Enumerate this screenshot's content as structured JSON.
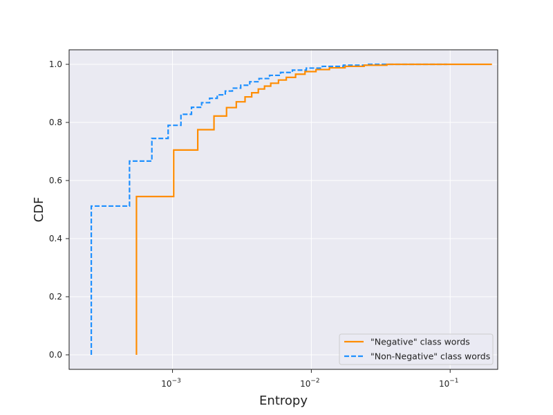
{
  "chart_data": {
    "type": "line",
    "subtype": "step-cdf",
    "title": "",
    "xlabel": "Entropy",
    "ylabel": "CDF",
    "xscale": "log",
    "xlim": [
      0.00018,
      0.22
    ],
    "ylim": [
      -0.05,
      1.05
    ],
    "x_ticks": [
      {
        "value": 0.001,
        "base": "10",
        "exp": "−3"
      },
      {
        "value": 0.01,
        "base": "10",
        "exp": "−2"
      },
      {
        "value": 0.1,
        "base": "10",
        "exp": "−1"
      }
    ],
    "y_ticks": [
      {
        "value": 0.0,
        "label": "0.0"
      },
      {
        "value": 0.2,
        "label": "0.2"
      },
      {
        "value": 0.4,
        "label": "0.4"
      },
      {
        "value": 0.6,
        "label": "0.6"
      },
      {
        "value": 0.8,
        "label": "0.8"
      },
      {
        "value": 1.0,
        "label": "1.0"
      }
    ],
    "grid": true,
    "legend_position": "lower-right",
    "series": [
      {
        "name": "\"Negative\" class words",
        "color": "#ff8c00",
        "linestyle": "solid",
        "points": [
          [
            0.00055,
            0.0
          ],
          [
            0.00055,
            0.545
          ],
          [
            0.00102,
            0.545
          ],
          [
            0.00102,
            0.705
          ],
          [
            0.00152,
            0.705
          ],
          [
            0.00152,
            0.775
          ],
          [
            0.00199,
            0.775
          ],
          [
            0.00199,
            0.822
          ],
          [
            0.00245,
            0.822
          ],
          [
            0.00245,
            0.851
          ],
          [
            0.00288,
            0.851
          ],
          [
            0.00288,
            0.871
          ],
          [
            0.00333,
            0.871
          ],
          [
            0.00333,
            0.888
          ],
          [
            0.00372,
            0.888
          ],
          [
            0.00372,
            0.902
          ],
          [
            0.00415,
            0.902
          ],
          [
            0.00415,
            0.915
          ],
          [
            0.0046,
            0.915
          ],
          [
            0.0046,
            0.925
          ],
          [
            0.0051,
            0.925
          ],
          [
            0.0051,
            0.935
          ],
          [
            0.0058,
            0.935
          ],
          [
            0.0058,
            0.946
          ],
          [
            0.0066,
            0.946
          ],
          [
            0.0066,
            0.955
          ],
          [
            0.0077,
            0.955
          ],
          [
            0.0077,
            0.966
          ],
          [
            0.009,
            0.966
          ],
          [
            0.009,
            0.975
          ],
          [
            0.0108,
            0.975
          ],
          [
            0.0108,
            0.982
          ],
          [
            0.0135,
            0.982
          ],
          [
            0.0135,
            0.988
          ],
          [
            0.0175,
            0.988
          ],
          [
            0.0175,
            0.993
          ],
          [
            0.024,
            0.993
          ],
          [
            0.024,
            0.997
          ],
          [
            0.035,
            0.997
          ],
          [
            0.035,
            1.0
          ],
          [
            0.2,
            1.0
          ]
        ]
      },
      {
        "name": "\"Non-Negative\" class words",
        "color": "#1e90ff",
        "linestyle": "dashed",
        "points": [
          [
            0.00026,
            0.0
          ],
          [
            0.00026,
            0.512
          ],
          [
            0.00049,
            0.512
          ],
          [
            0.00049,
            0.667
          ],
          [
            0.00071,
            0.667
          ],
          [
            0.00071,
            0.745
          ],
          [
            0.00093,
            0.745
          ],
          [
            0.00093,
            0.79
          ],
          [
            0.00115,
            0.79
          ],
          [
            0.00115,
            0.828
          ],
          [
            0.00137,
            0.828
          ],
          [
            0.00137,
            0.852
          ],
          [
            0.00162,
            0.852
          ],
          [
            0.00162,
            0.868
          ],
          [
            0.00185,
            0.868
          ],
          [
            0.00185,
            0.883
          ],
          [
            0.0021,
            0.883
          ],
          [
            0.0021,
            0.895
          ],
          [
            0.0024,
            0.895
          ],
          [
            0.0024,
            0.908
          ],
          [
            0.0027,
            0.908
          ],
          [
            0.0027,
            0.918
          ],
          [
            0.0031,
            0.918
          ],
          [
            0.0031,
            0.928
          ],
          [
            0.0036,
            0.928
          ],
          [
            0.0036,
            0.94
          ],
          [
            0.0042,
            0.94
          ],
          [
            0.0042,
            0.951
          ],
          [
            0.005,
            0.951
          ],
          [
            0.005,
            0.962
          ],
          [
            0.006,
            0.962
          ],
          [
            0.006,
            0.972
          ],
          [
            0.0073,
            0.972
          ],
          [
            0.0073,
            0.98
          ],
          [
            0.0092,
            0.98
          ],
          [
            0.0092,
            0.987
          ],
          [
            0.012,
            0.987
          ],
          [
            0.012,
            0.993
          ],
          [
            0.017,
            0.993
          ],
          [
            0.017,
            0.997
          ],
          [
            0.025,
            0.997
          ],
          [
            0.025,
            1.0
          ],
          [
            0.095,
            1.0
          ]
        ]
      }
    ]
  }
}
